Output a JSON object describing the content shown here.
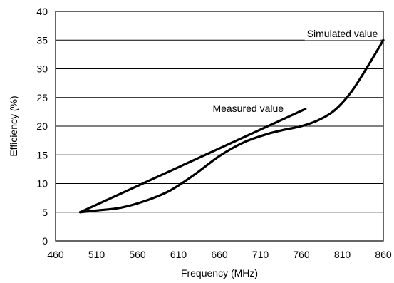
{
  "chart_data": {
    "type": "line",
    "title": "",
    "xlabel": "Frequency (MHz)",
    "ylabel": "Efficiency (%)",
    "xlim": [
      460,
      860
    ],
    "ylim": [
      0,
      40
    ],
    "x_ticks": [
      460,
      510,
      560,
      610,
      660,
      710,
      760,
      810,
      860
    ],
    "y_ticks": [
      0,
      5,
      10,
      15,
      20,
      25,
      30,
      35,
      40
    ],
    "grid": "horizontal",
    "line_color": "#000000",
    "series": [
      {
        "name": "Measured value",
        "points": [
          [
            490,
            5
          ],
          [
            765,
            23
          ]
        ]
      },
      {
        "name": "Simulated value",
        "points": [
          [
            490,
            5
          ],
          [
            510,
            5.3
          ],
          [
            540,
            5.8
          ],
          [
            570,
            7.0
          ],
          [
            600,
            8.8
          ],
          [
            630,
            11.6
          ],
          [
            660,
            14.8
          ],
          [
            690,
            17.2
          ],
          [
            720,
            18.7
          ],
          [
            740,
            19.4
          ],
          [
            760,
            20.0
          ],
          [
            780,
            21.0
          ],
          [
            800,
            22.7
          ],
          [
            820,
            25.8
          ],
          [
            840,
            30.2
          ],
          [
            860,
            35.0
          ]
        ]
      }
    ],
    "annotations": [
      {
        "text": "Simulated value",
        "x": 810,
        "y": 35.5
      },
      {
        "text": "Measured value",
        "x": 695,
        "y": 22.5
      }
    ]
  }
}
